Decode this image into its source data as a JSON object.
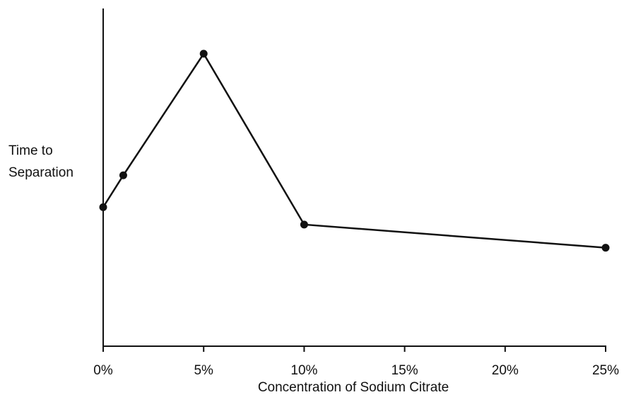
{
  "chart_data": {
    "type": "line",
    "title": "",
    "xlabel": "Concentration of Sodium Citrate",
    "ylabel_lines": [
      "Time to",
      "Separation"
    ],
    "x_tick_labels": [
      "0%",
      "5%",
      "10%",
      "15%",
      "20%",
      "25%"
    ],
    "x_tick_values": [
      0,
      5,
      10,
      15,
      20,
      25
    ],
    "xlim": [
      0,
      25
    ],
    "ylim": [
      0,
      100
    ],
    "y_axis_ticks": "none",
    "grid": false,
    "legend": "none",
    "series": [
      {
        "x": [
          0,
          1,
          5,
          10,
          25
        ],
        "y": [
          48,
          59,
          101,
          42,
          34
        ]
      }
    ],
    "colors": {
      "line": "#111111",
      "marker": "#111111",
      "axis": "#111111"
    }
  }
}
